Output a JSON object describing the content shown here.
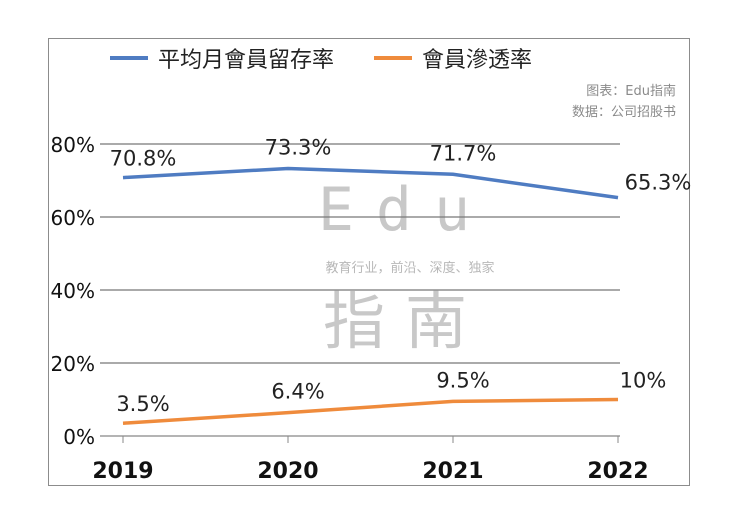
{
  "chart_data": {
    "type": "line",
    "categories": [
      "2019",
      "2020",
      "2021",
      "2022"
    ],
    "series": [
      {
        "name": "平均月會員留存率",
        "values": [
          70.8,
          73.3,
          71.7,
          65.3
        ],
        "labels": [
          "70.8%",
          "73.3%",
          "71.7%",
          "65.3%"
        ],
        "color": "#4f7cc2"
      },
      {
        "name": "會員滲透率",
        "values": [
          3.5,
          6.4,
          9.5,
          10
        ],
        "labels": [
          "3.5%",
          "6.4%",
          "9.5%",
          "10%"
        ],
        "color": "#ef8b3c"
      }
    ],
    "yticks": [
      "0%",
      "20%",
      "40%",
      "60%",
      "80%"
    ],
    "ylim": [
      0,
      80
    ],
    "grid": true,
    "legend": "top"
  },
  "source": {
    "chart": "图表：Edu指南",
    "data": "数据：公司招股书"
  },
  "watermark": {
    "logo": "Edu",
    "tagline": "教育行业，前沿、深度、独家",
    "name": "指南"
  }
}
